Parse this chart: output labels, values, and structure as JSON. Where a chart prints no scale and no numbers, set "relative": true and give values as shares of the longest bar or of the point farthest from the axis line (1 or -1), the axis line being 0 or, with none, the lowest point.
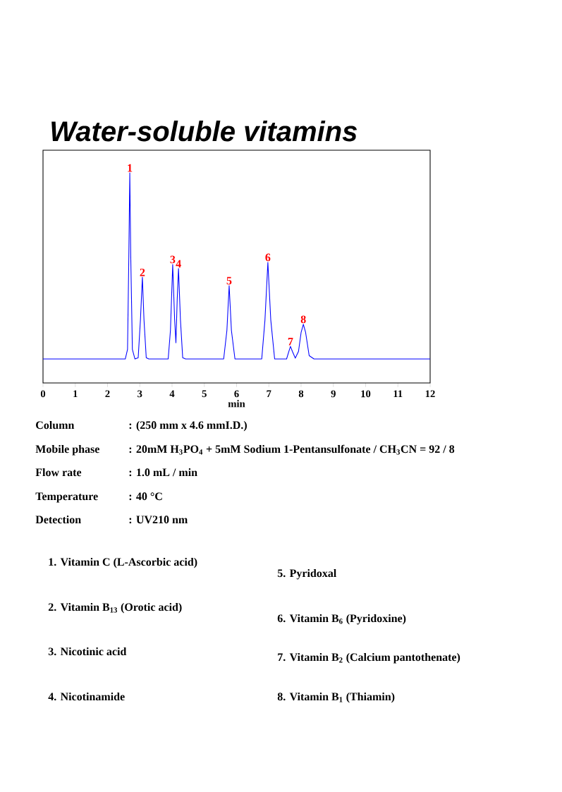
{
  "chart_data": {
    "type": "line",
    "title": "Water-soluble vitamins",
    "xlabel": "min",
    "relative": true,
    "color": "#0000ff",
    "xlim": [
      0,
      12
    ],
    "xticks": [
      0,
      1,
      2,
      3,
      4,
      5,
      6,
      7,
      8,
      9,
      10,
      11,
      12
    ],
    "x": [
      0,
      2.55,
      2.62,
      2.66,
      2.69,
      2.72,
      2.77,
      2.85,
      2.95,
      3.02,
      3.08,
      3.13,
      3.2,
      3.28,
      3.88,
      3.95,
      4.02,
      4.08,
      4.12,
      4.16,
      4.2,
      4.26,
      4.33,
      4.42,
      5.6,
      5.7,
      5.77,
      5.84,
      5.95,
      6.78,
      6.88,
      6.97,
      7.06,
      7.18,
      7.55,
      7.62,
      7.67,
      7.73,
      7.82,
      7.92,
      8.0,
      8.07,
      8.14,
      8.25,
      8.4,
      12
    ],
    "values": [
      0.114,
      0.114,
      0.16,
      0.6,
      1.0,
      0.6,
      0.16,
      0.114,
      0.12,
      0.3,
      0.503,
      0.3,
      0.12,
      0.114,
      0.114,
      0.25,
      0.564,
      0.3,
      0.191,
      0.4,
      0.544,
      0.3,
      0.12,
      0.114,
      0.114,
      0.25,
      0.463,
      0.25,
      0.114,
      0.114,
      0.3,
      0.574,
      0.3,
      0.114,
      0.114,
      0.15,
      0.174,
      0.15,
      0.118,
      0.15,
      0.24,
      0.279,
      0.24,
      0.13,
      0.114,
      0.114
    ],
    "annotations": [
      {
        "text": "1",
        "x": 2.69,
        "y": 1.0
      },
      {
        "text": "2",
        "x": 3.08,
        "y": 0.503
      },
      {
        "text": "3",
        "x": 4.02,
        "y": 0.564
      },
      {
        "text": "4",
        "x": 4.2,
        "y": 0.544
      },
      {
        "text": "5",
        "x": 5.77,
        "y": 0.463
      },
      {
        "text": "6",
        "x": 6.97,
        "y": 0.574
      },
      {
        "text": "7",
        "x": 7.67,
        "y": 0.174
      },
      {
        "text": "8",
        "x": 8.07,
        "y": 0.279
      },
      "Column",
      ": (250 mm x 4.6 mmI.D.)",
      "Mobile phase",
      ": 20mM H$_{3}$PO$_{4}$ + 5mM Sodium 1-Pentansulfonate / CH$_{3}$CN = 92 / 8",
      "Flow rate",
      ": 1.0 mL / min",
      "Temperature",
      ": 40 °C",
      "Detection",
      ": UV210 nm",
      "1. Vitamin C (L-Ascorbic acid)",
      "2. Vitamin B$_{13}$ (Orotic acid)",
      "3. Nicotinic acid",
      "4. Nicotinamide",
      "5. Pyridoxal",
      "6. Vitamin B$_{6}$ (Pyridoxine)",
      "7. Vitamin B$_{2}$ (Calcium pantothenate)",
      "8. Vitamin B$_{1}$ (Thiamin)"
    ]
  }
}
